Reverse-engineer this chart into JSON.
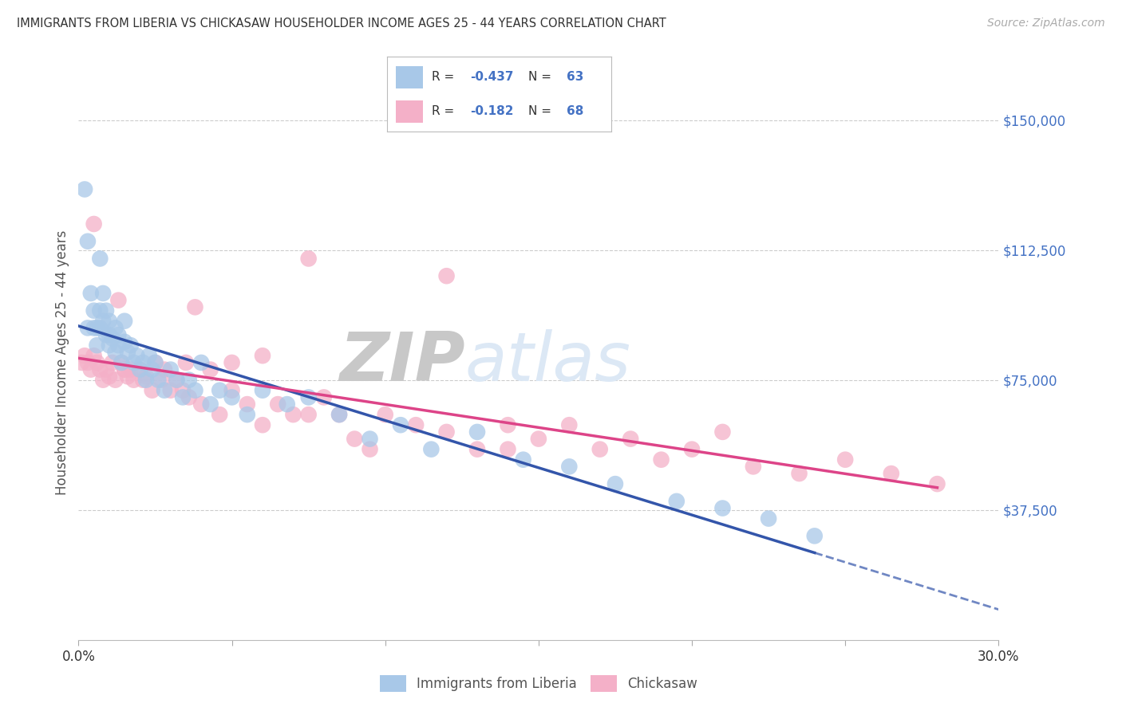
{
  "title": "IMMIGRANTS FROM LIBERIA VS CHICKASAW HOUSEHOLDER INCOME AGES 25 - 44 YEARS CORRELATION CHART",
  "source": "Source: ZipAtlas.com",
  "ylabel": "Householder Income Ages 25 - 44 years",
  "xlim": [
    0.0,
    0.3
  ],
  "ylim": [
    0,
    160000
  ],
  "yticks": [
    37500,
    75000,
    112500,
    150000
  ],
  "ytick_labels": [
    "$37,500",
    "$75,000",
    "$112,500",
    "$150,000"
  ],
  "xticks": [
    0.0,
    0.05,
    0.1,
    0.15,
    0.2,
    0.25,
    0.3
  ],
  "xtick_labels": [
    "0.0%",
    "",
    "",
    "",
    "",
    "",
    "30.0%"
  ],
  "legend_r1": "-0.437",
  "legend_n1": "63",
  "legend_r2": "-0.182",
  "legend_n2": "68",
  "color_blue": "#a8c8e8",
  "color_pink": "#f4b0c8",
  "color_blue_line": "#3355aa",
  "color_pink_line": "#dd4488",
  "color_value": "#4472c4",
  "watermark_color": "#dce8f5",
  "background_color": "#ffffff",
  "grid_color": "#cccccc",
  "blue_scatter_x": [
    0.002,
    0.003,
    0.003,
    0.004,
    0.005,
    0.005,
    0.006,
    0.006,
    0.007,
    0.007,
    0.007,
    0.008,
    0.008,
    0.009,
    0.009,
    0.01,
    0.01,
    0.01,
    0.011,
    0.012,
    0.012,
    0.013,
    0.013,
    0.014,
    0.015,
    0.015,
    0.016,
    0.017,
    0.018,
    0.019,
    0.02,
    0.021,
    0.022,
    0.023,
    0.024,
    0.025,
    0.026,
    0.028,
    0.03,
    0.032,
    0.034,
    0.036,
    0.038,
    0.04,
    0.043,
    0.046,
    0.05,
    0.055,
    0.06,
    0.068,
    0.075,
    0.085,
    0.095,
    0.105,
    0.115,
    0.13,
    0.145,
    0.16,
    0.175,
    0.195,
    0.21,
    0.225,
    0.24
  ],
  "blue_scatter_y": [
    130000,
    90000,
    115000,
    100000,
    90000,
    95000,
    85000,
    90000,
    90000,
    95000,
    110000,
    92000,
    100000,
    88000,
    95000,
    85000,
    88000,
    92000,
    87000,
    83000,
    90000,
    85000,
    88000,
    80000,
    86000,
    92000,
    83000,
    85000,
    80000,
    82000,
    78000,
    80000,
    75000,
    82000,
    78000,
    80000,
    75000,
    72000,
    78000,
    75000,
    70000,
    75000,
    72000,
    80000,
    68000,
    72000,
    70000,
    65000,
    72000,
    68000,
    70000,
    65000,
    58000,
    62000,
    55000,
    60000,
    52000,
    50000,
    45000,
    40000,
    38000,
    35000,
    30000
  ],
  "pink_scatter_x": [
    0.001,
    0.002,
    0.003,
    0.004,
    0.005,
    0.005,
    0.006,
    0.007,
    0.008,
    0.009,
    0.01,
    0.011,
    0.012,
    0.013,
    0.014,
    0.015,
    0.016,
    0.017,
    0.018,
    0.02,
    0.021,
    0.022,
    0.024,
    0.025,
    0.027,
    0.028,
    0.03,
    0.032,
    0.034,
    0.036,
    0.038,
    0.04,
    0.043,
    0.046,
    0.05,
    0.055,
    0.06,
    0.065,
    0.07,
    0.075,
    0.08,
    0.085,
    0.09,
    0.1,
    0.11,
    0.12,
    0.13,
    0.14,
    0.15,
    0.16,
    0.17,
    0.18,
    0.19,
    0.2,
    0.21,
    0.22,
    0.235,
    0.25,
    0.265,
    0.28,
    0.12,
    0.05,
    0.095,
    0.075,
    0.035,
    0.14,
    0.06,
    0.015
  ],
  "pink_scatter_y": [
    80000,
    82000,
    80000,
    78000,
    120000,
    82000,
    80000,
    78000,
    75000,
    78000,
    76000,
    80000,
    75000,
    98000,
    80000,
    78000,
    76000,
    78000,
    75000,
    78000,
    75000,
    76000,
    72000,
    80000,
    75000,
    78000,
    72000,
    75000,
    72000,
    70000,
    96000,
    68000,
    78000,
    65000,
    72000,
    68000,
    62000,
    68000,
    65000,
    110000,
    70000,
    65000,
    58000,
    65000,
    62000,
    60000,
    55000,
    62000,
    58000,
    62000,
    55000,
    58000,
    52000,
    55000,
    60000,
    50000,
    48000,
    52000,
    48000,
    45000,
    105000,
    80000,
    55000,
    65000,
    80000,
    55000,
    82000,
    78000
  ]
}
